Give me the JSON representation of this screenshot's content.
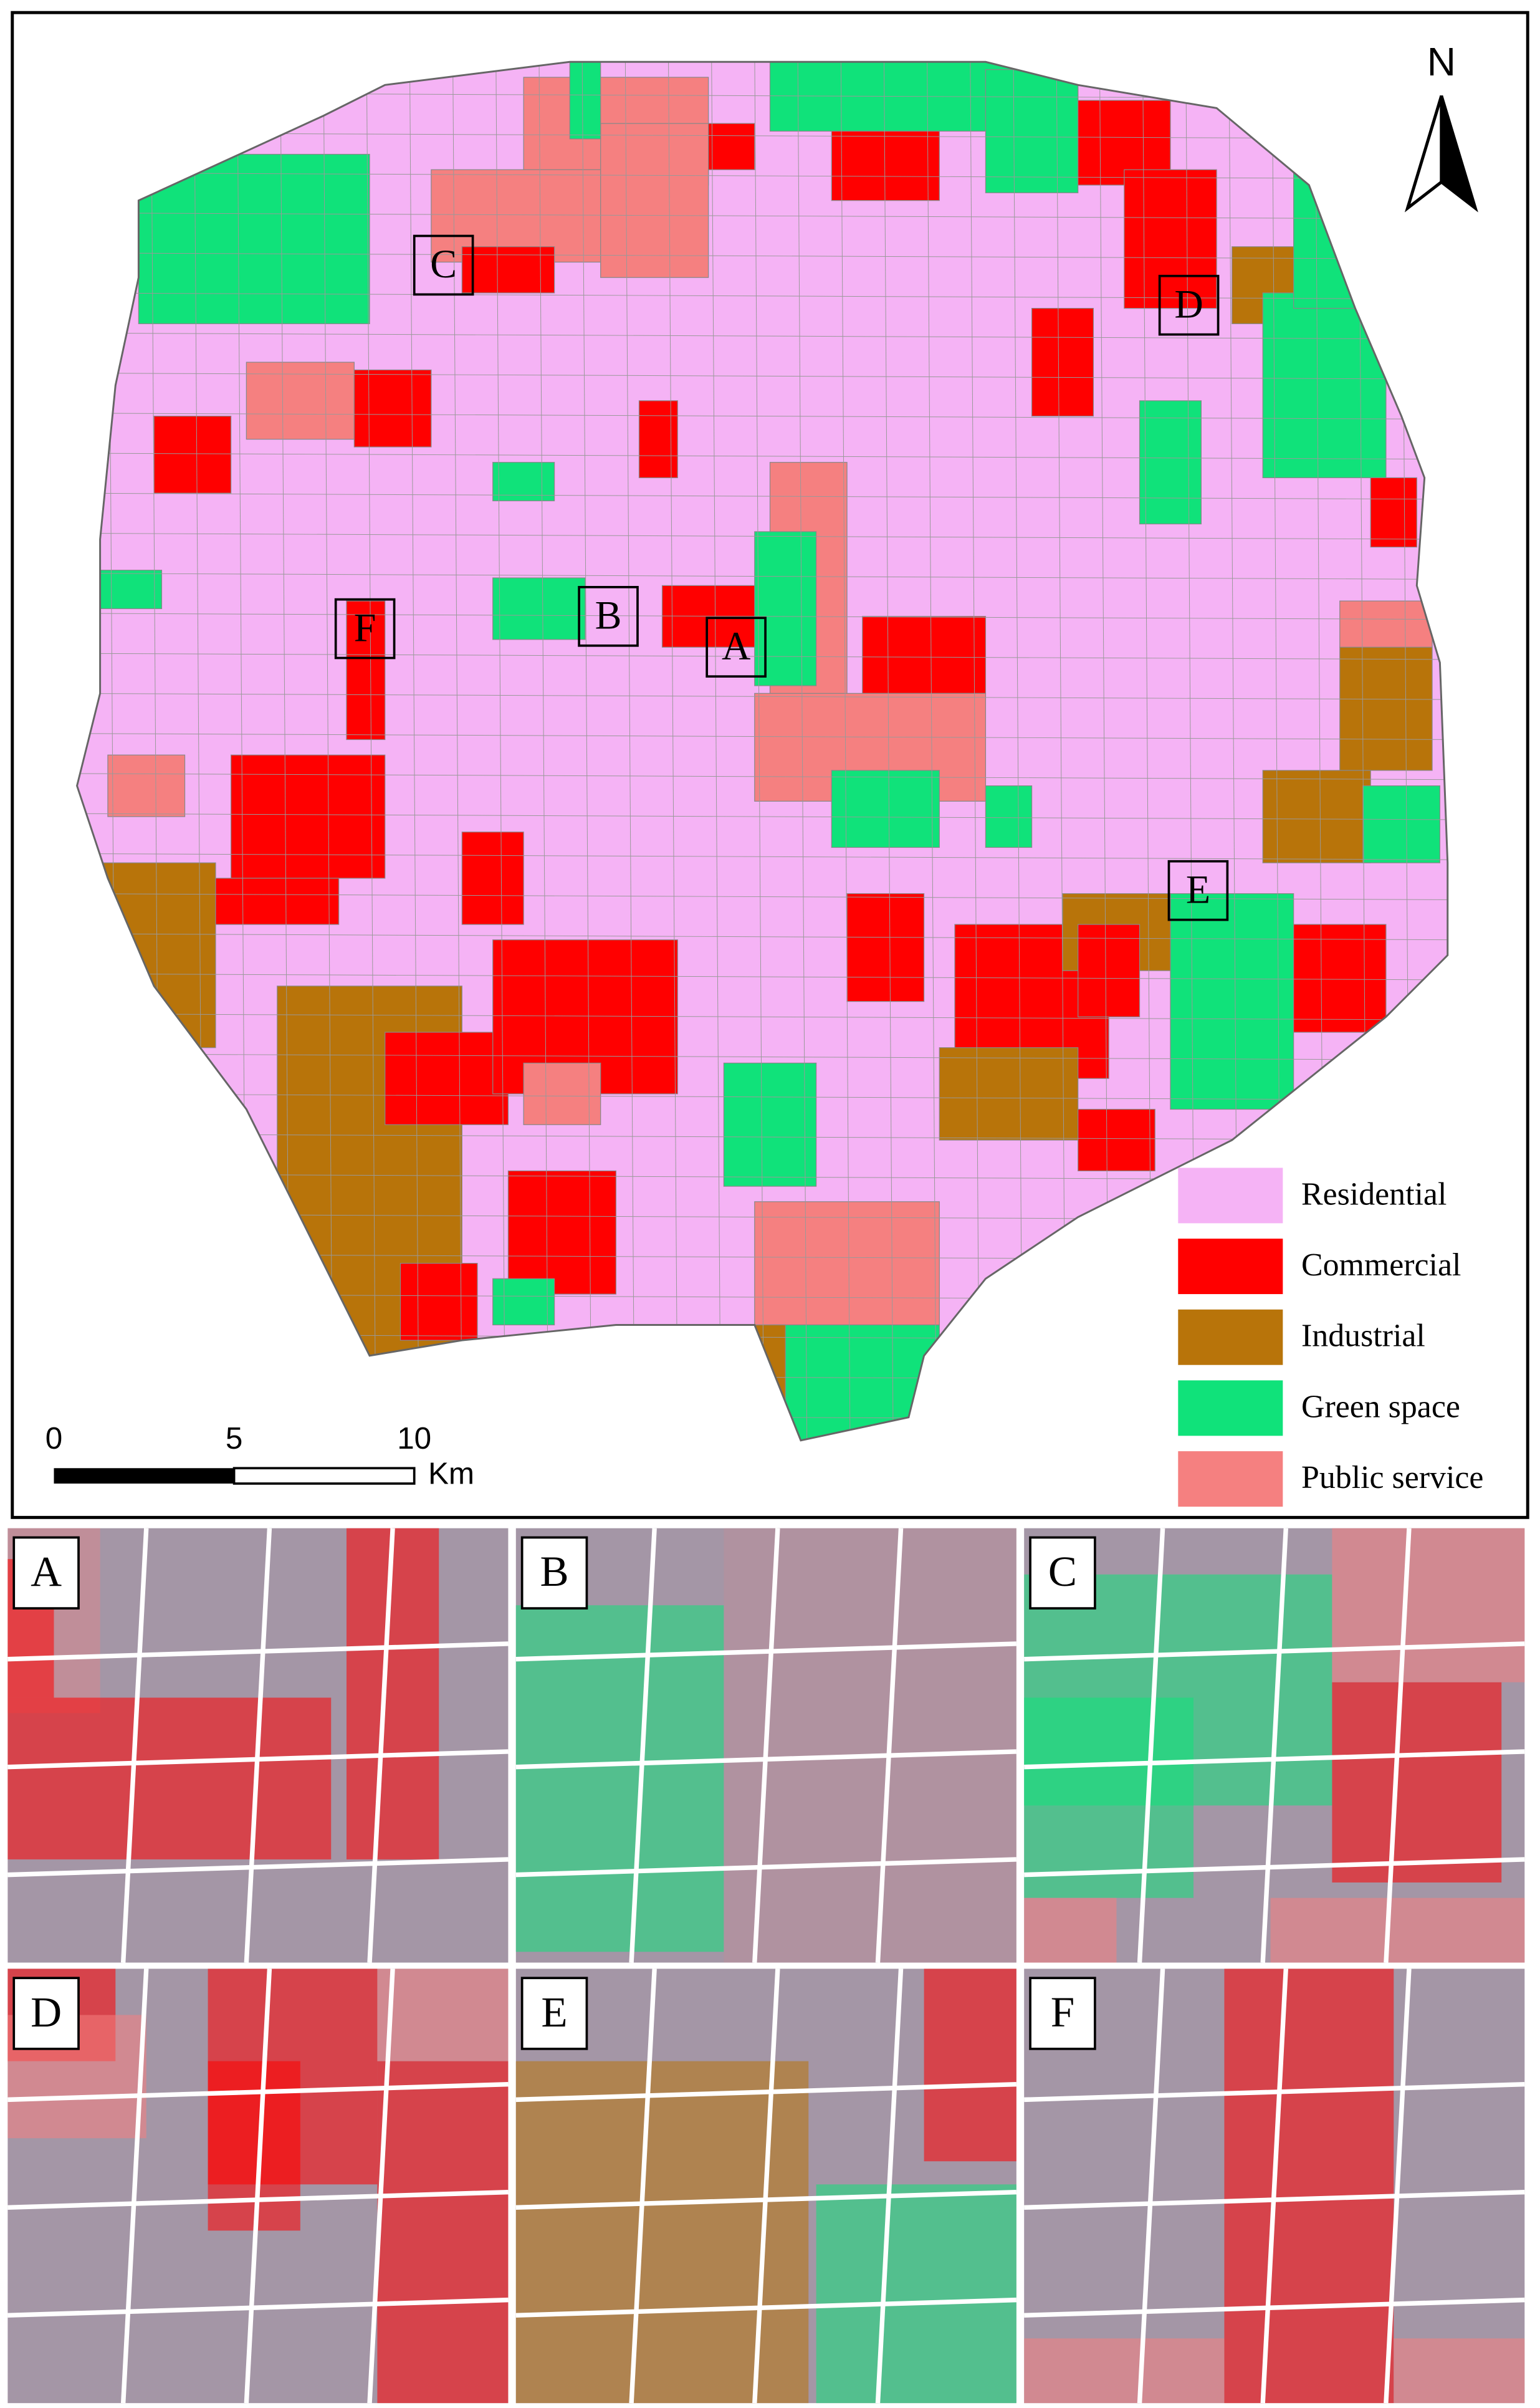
{
  "map": {
    "north_label": "N",
    "box_labels": [
      "C",
      "D",
      "B",
      "A",
      "F",
      "E"
    ],
    "legend": [
      {
        "label": "Residential",
        "color": "#f5b3f5"
      },
      {
        "label": "Commercial",
        "color": "#ff0000"
      },
      {
        "label": "Industrial",
        "color": "#b8740a"
      },
      {
        "label": "Green space",
        "color": "#10e27a"
      },
      {
        "label": "Public service",
        "color": "#f58080"
      }
    ],
    "scale_bar": {
      "ticks": [
        0,
        5,
        10
      ],
      "unit": "Km"
    }
  },
  "panels": [
    {
      "label": "A"
    },
    {
      "label": "B"
    },
    {
      "label": "C"
    },
    {
      "label": "D"
    },
    {
      "label": "E"
    },
    {
      "label": "F"
    }
  ]
}
